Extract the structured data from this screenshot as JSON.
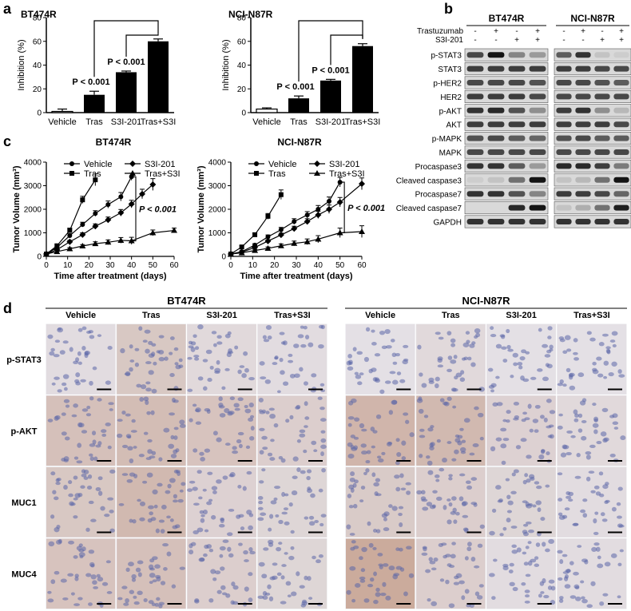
{
  "panel_letters": {
    "a": "a",
    "b": "b",
    "c": "c",
    "d": "d"
  },
  "chart_data": [
    {
      "type": "bar",
      "id": "a-bt474r",
      "title": "BT474R",
      "ylabel": "Inhibition (%)",
      "categories": [
        "Vehicle",
        "Tras",
        "S3I-201",
        "Tras+S3I"
      ],
      "values": [
        1,
        15,
        34,
        60
      ],
      "errors": [
        2,
        3,
        1,
        2
      ],
      "ylim": [
        0,
        80
      ],
      "yticks": [
        0,
        20,
        40,
        60,
        80
      ],
      "pvalues": [
        "P < 0.001",
        "P < 0.001"
      ]
    },
    {
      "type": "bar",
      "id": "a-ncin87r",
      "title": "NCI-N87R",
      "ylabel": "Inhibition (%)",
      "categories": [
        "Vehicle",
        "Tras",
        "S3I-201",
        "Tras+S3I"
      ],
      "values": [
        3,
        12,
        27,
        56
      ],
      "errors": [
        1,
        2,
        1,
        2
      ],
      "ylim": [
        0,
        80
      ],
      "yticks": [
        0,
        20,
        40,
        60,
        80
      ],
      "pvalues": [
        "P < 0.001",
        "P < 0.001"
      ]
    },
    {
      "type": "line",
      "id": "c-bt474r",
      "title": "BT474R",
      "xlabel": "Time after treatment (days)",
      "ylabel": "Tumor Volume (mm³)",
      "xlim": [
        0,
        60
      ],
      "ylim": [
        0,
        4000
      ],
      "xticks": [
        0,
        10,
        20,
        30,
        40,
        50,
        60
      ],
      "yticks": [
        0,
        1000,
        2000,
        3000,
        4000
      ],
      "pvalue": "P < 0.001",
      "series": [
        {
          "name": "Vehicle",
          "marker": "circle",
          "x": [
            0,
            5,
            11,
            17,
            23,
            29,
            35,
            40
          ],
          "y": [
            100,
            380,
            880,
            1350,
            1820,
            2200,
            2530,
            3380
          ],
          "err": [
            30,
            50,
            80,
            100,
            120,
            150,
            180,
            150
          ]
        },
        {
          "name": "Tras",
          "marker": "square",
          "x": [
            0,
            5,
            11,
            17,
            23
          ],
          "y": [
            100,
            450,
            1100,
            2400,
            3250
          ],
          "err": [
            30,
            60,
            100,
            150,
            250
          ]
        },
        {
          "name": "S3I-201",
          "marker": "diamond",
          "x": [
            0,
            5,
            11,
            17,
            23,
            29,
            35,
            40,
            45,
            50
          ],
          "y": [
            100,
            280,
            620,
            920,
            1280,
            1550,
            1850,
            2220,
            2650,
            3050
          ],
          "err": [
            30,
            40,
            60,
            80,
            100,
            120,
            140,
            160,
            200,
            250
          ]
        },
        {
          "name": "Tras+S3I",
          "marker": "triangle",
          "x": [
            0,
            5,
            11,
            17,
            23,
            29,
            35,
            40,
            50,
            60
          ],
          "y": [
            100,
            200,
            320,
            440,
            540,
            600,
            680,
            660,
            1000,
            1100
          ],
          "err": [
            30,
            40,
            50,
            60,
            80,
            100,
            120,
            150,
            120,
            100
          ]
        }
      ]
    },
    {
      "type": "line",
      "id": "c-ncin87r",
      "title": "NCI-N87R",
      "xlabel": "Time after treatment (days)",
      "ylabel": "Tumor Volume (mm³)",
      "xlim": [
        0,
        60
      ],
      "ylim": [
        0,
        4000
      ],
      "xticks": [
        0,
        10,
        20,
        30,
        40,
        50,
        60
      ],
      "yticks": [
        0,
        1000,
        2000,
        3000,
        4000
      ],
      "pvalue": "P < 0.001",
      "series": [
        {
          "name": "Vehicle",
          "marker": "circle",
          "x": [
            0,
            5,
            11,
            17,
            23,
            29,
            35,
            40,
            45,
            50
          ],
          "y": [
            100,
            200,
            480,
            830,
            1130,
            1480,
            1760,
            2000,
            2340,
            3150
          ],
          "err": [
            30,
            40,
            60,
            80,
            100,
            120,
            140,
            160,
            180,
            200
          ]
        },
        {
          "name": "Tras",
          "marker": "square",
          "x": [
            0,
            5,
            11,
            17,
            23
          ],
          "y": [
            100,
            400,
            920,
            1700,
            2620
          ],
          "err": [
            30,
            50,
            80,
            120,
            200
          ]
        },
        {
          "name": "S3I-201",
          "marker": "diamond",
          "x": [
            0,
            5,
            11,
            17,
            23,
            29,
            35,
            40,
            45,
            50,
            60
          ],
          "y": [
            100,
            180,
            380,
            650,
            910,
            1180,
            1480,
            1760,
            2000,
            2300,
            3080
          ],
          "err": [
            30,
            40,
            50,
            60,
            80,
            100,
            120,
            150,
            180,
            200,
            250
          ]
        },
        {
          "name": "Tras+S3I",
          "marker": "triangle",
          "x": [
            0,
            5,
            11,
            17,
            23,
            29,
            35,
            40,
            50,
            60
          ],
          "y": [
            100,
            150,
            250,
            340,
            450,
            550,
            620,
            730,
            1000,
            1050
          ],
          "err": [
            30,
            30,
            50,
            60,
            80,
            100,
            120,
            150,
            200,
            250
          ]
        }
      ]
    }
  ],
  "western": {
    "cell_lines": [
      "BT474R",
      "NCI-N87R"
    ],
    "treatments": [
      {
        "name": "Trastuzumab",
        "signs": [
          "-",
          "+",
          "-",
          "+"
        ]
      },
      {
        "name": "S3I-201",
        "signs": [
          "-",
          "-",
          "+",
          "+"
        ]
      }
    ],
    "proteins": [
      "p-STAT3",
      "STAT3",
      "p-HER2",
      "HER2",
      "p-AKT",
      "AKT",
      "p-MAPK",
      "MAPK",
      "Procaspase3",
      "Cleaved caspase3",
      "Procaspase7",
      "Cleaved caspase7",
      "GAPDH"
    ],
    "intensities": {
      "BT474R": [
        [
          0.7,
          0.95,
          0.4,
          0.3
        ],
        [
          0.75,
          0.75,
          0.75,
          0.75
        ],
        [
          0.7,
          0.7,
          0.7,
          0.65
        ],
        [
          0.75,
          0.75,
          0.75,
          0.7
        ],
        [
          0.8,
          0.85,
          0.65,
          0.35
        ],
        [
          0.75,
          0.75,
          0.75,
          0.75
        ],
        [
          0.65,
          0.7,
          0.6,
          0.55
        ],
        [
          0.7,
          0.7,
          0.7,
          0.7
        ],
        [
          0.8,
          0.8,
          0.6,
          0.3
        ],
        [
          0.05,
          0.1,
          0.5,
          0.95
        ],
        [
          0.8,
          0.8,
          0.65,
          0.4
        ],
        [
          0,
          0,
          0.85,
          0.95
        ],
        [
          0.8,
          0.8,
          0.8,
          0.8
        ]
      ],
      "NCI-N87R": [
        [
          0.6,
          0.8,
          0.1,
          0.05
        ],
        [
          0.75,
          0.75,
          0.7,
          0.7
        ],
        [
          0.7,
          0.7,
          0.65,
          0.6
        ],
        [
          0.7,
          0.7,
          0.7,
          0.7
        ],
        [
          0.75,
          0.8,
          0.35,
          0.15
        ],
        [
          0.75,
          0.75,
          0.75,
          0.7
        ],
        [
          0.65,
          0.7,
          0.6,
          0.6
        ],
        [
          0.7,
          0.7,
          0.7,
          0.7
        ],
        [
          0.85,
          0.85,
          0.75,
          0.45
        ],
        [
          0.1,
          0.15,
          0.5,
          0.95
        ],
        [
          0.75,
          0.75,
          0.7,
          0.55
        ],
        [
          0.1,
          0.2,
          0.5,
          0.9
        ],
        [
          0.8,
          0.8,
          0.8,
          0.8
        ]
      ]
    }
  },
  "ihc": {
    "cell_lines": [
      "BT474R",
      "NCI-N87R"
    ],
    "columns": [
      "Vehicle",
      "Tras",
      "S3I-201",
      "Tras+S3I"
    ],
    "markers": [
      "p-STAT3",
      "p-AKT",
      "MUC1",
      "MUC4"
    ],
    "staining": {
      "BT474R": [
        [
          0.1,
          0.4,
          0.15,
          0.1
        ],
        [
          0.5,
          0.55,
          0.45,
          0.3
        ],
        [
          0.4,
          0.6,
          0.25,
          0.2
        ],
        [
          0.45,
          0.5,
          0.3,
          0.2
        ]
      ],
      "NCI-N87R": [
        [
          0.05,
          0.15,
          0.05,
          0.05
        ],
        [
          0.65,
          0.6,
          0.25,
          0.15
        ],
        [
          0.35,
          0.3,
          0.2,
          0.1
        ],
        [
          0.8,
          0.3,
          0.1,
          0.1
        ]
      ]
    },
    "colors": {
      "hematoxylin": "#8a93c4",
      "dab": "#a8623a",
      "background": "#e6e4ea"
    }
  }
}
